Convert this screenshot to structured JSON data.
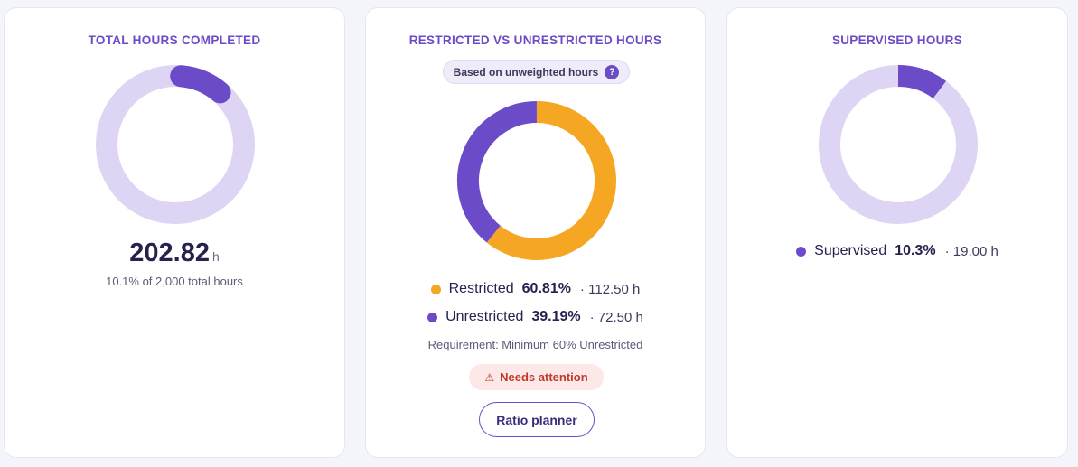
{
  "colors": {
    "accent": "#6c4bc8",
    "track": "#ddd5f3",
    "restricted": "#f5a623",
    "unrestricted": "#6c4bc8",
    "warning": "#c0392b"
  },
  "total": {
    "title": "TOTAL HOURS COMPLETED",
    "value": "202.82",
    "unit": "h",
    "subtitle": "10.1% of 2,000 total hours",
    "progress_fraction": 0.101
  },
  "ratio": {
    "title": "RESTRICTED VS UNRESTRICTED HOURS",
    "pill_label": "Based on unweighted hours",
    "help_icon": "question-circle-icon",
    "help_glyph": "?",
    "restricted": {
      "label": "Restricted",
      "pct": "60.81%",
      "hours": "· 112.50 h",
      "fraction": 0.6081
    },
    "unrestricted": {
      "label": "Unrestricted",
      "pct": "39.19%",
      "hours": "· 72.50 h",
      "fraction": 0.3919
    },
    "requirement": "Requirement: Minimum 60% Unrestricted",
    "attention_icon": "warning-triangle-icon",
    "attention_glyph": "⚠",
    "attention": "Needs attention",
    "button_label": "Ratio planner"
  },
  "supervised": {
    "title": "SUPERVISED HOURS",
    "label": "Supervised",
    "pct": "10.3%",
    "hours": "· 19.00 h",
    "fraction": 0.103
  }
}
